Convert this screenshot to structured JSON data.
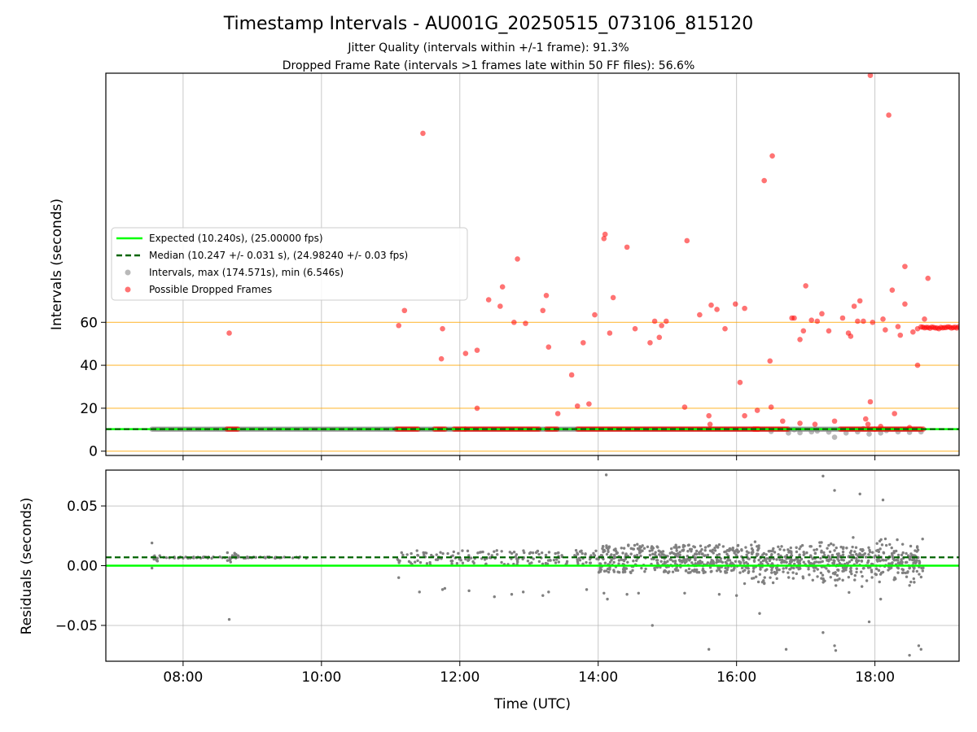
{
  "figure": {
    "title": "Timestamp Intervals - AU001G_20250515_073106_815120",
    "subtitle_1": "Jitter Quality (intervals within +/-1 frame): 91.3%",
    "subtitle_2": "Dropped Frame Rate (intervals >1 frames late within 50 FF files): 56.6%"
  },
  "colors": {
    "expected": "#00ff00",
    "median": "#006400",
    "intervals": "#808080",
    "dropped": "#ff0000",
    "hline": "#ffa500"
  },
  "chart_data": [
    {
      "type": "scatter",
      "panel": "top",
      "ylabel": "Intervals (seconds)",
      "xlabel": "",
      "xlim": [
        "06:53",
        "19:13"
      ],
      "ylim": [
        -2,
        176
      ],
      "yticks": [
        0,
        20,
        40,
        60
      ],
      "xticks": [
        "08:00",
        "10:00",
        "12:00",
        "14:00",
        "16:00",
        "18:00"
      ],
      "grid": true,
      "legend_position": "center-left",
      "reference_lines": {
        "expected": 10.24,
        "median": 10.247,
        "horizontal_levels": [
          0,
          20,
          40,
          60
        ]
      },
      "legend": [
        "Expected (10.240s), (25.00000 fps)",
        "Median (10.247 +/- 0.031 s), (24.98240 +/- 0.03 fps)",
        "Intervals, max (174.571s), min (6.546s)",
        "Possible Dropped Frames"
      ],
      "series": [
        {
          "name": "Intervals, max (174.571s), min (6.546s)",
          "bands": [
            [
              "07:33",
              "18:40",
              10.24
            ]
          ],
          "points": [
            [
              "16:45",
              8.5
            ],
            [
              "16:55",
              8.6
            ],
            [
              "17:05",
              9.0
            ],
            [
              "17:20",
              8.9
            ],
            [
              "17:25",
              6.5
            ],
            [
              "17:35",
              8.5
            ],
            [
              "17:45",
              9.0
            ],
            [
              "17:55",
              8.0
            ],
            [
              "18:05",
              8.5
            ],
            [
              "18:20",
              9.0
            ],
            [
              "18:30",
              8.8
            ],
            [
              "18:40",
              9.0
            ],
            [
              "16:30",
              9.2
            ],
            [
              "17:50",
              10.5
            ],
            [
              "16:50",
              10.0
            ],
            [
              "17:10",
              9.4
            ],
            [
              "18:10",
              9.6
            ]
          ]
        },
        {
          "name": "Possible Dropped Frames",
          "bands": [
            [
              "08:38",
              "08:48",
              10.3
            ],
            [
              "11:05",
              "11:25",
              10.3
            ],
            [
              "11:38",
              "11:48",
              10.3
            ],
            [
              "11:55",
              "12:05",
              10.3
            ],
            [
              "12:05",
              "13:10",
              10.3
            ],
            [
              "13:15",
              "13:25",
              10.3
            ],
            [
              "13:42",
              "16:20",
              10.3
            ],
            [
              "16:15",
              "16:45",
              10.3
            ],
            [
              "17:30",
              "18:00",
              10.3
            ],
            [
              "18:00",
              "18:42",
              10.3
            ],
            [
              "18:40",
              "19:13",
              57.5
            ]
          ],
          "points": [
            [
              "08:40",
              55
            ],
            [
              "11:07",
              58.5
            ],
            [
              "11:12",
              65.5
            ],
            [
              "11:28",
              148
            ],
            [
              "11:44",
              43
            ],
            [
              "11:45",
              57
            ],
            [
              "12:05",
              45.5
            ],
            [
              "12:15",
              47
            ],
            [
              "12:15",
              20
            ],
            [
              "12:25",
              70.5
            ],
            [
              "12:35",
              67.5
            ],
            [
              "12:37",
              76.5
            ],
            [
              "12:47",
              60
            ],
            [
              "12:50",
              89.5
            ],
            [
              "12:57",
              59.5
            ],
            [
              "13:12",
              65.5
            ],
            [
              "13:15",
              72.5
            ],
            [
              "13:17",
              48.5
            ],
            [
              "13:25",
              17.5
            ],
            [
              "13:37",
              35.5
            ],
            [
              "13:42",
              21
            ],
            [
              "13:47",
              50.5
            ],
            [
              "13:52",
              22
            ],
            [
              "13:57",
              63.5
            ],
            [
              "14:05",
              99
            ],
            [
              "14:06",
              101
            ],
            [
              "14:10",
              55
            ],
            [
              "14:13",
              71.5
            ],
            [
              "14:25",
              95
            ],
            [
              "14:32",
              57
            ],
            [
              "14:45",
              50.5
            ],
            [
              "14:49",
              60.5
            ],
            [
              "14:53",
              53
            ],
            [
              "14:55",
              58.5
            ],
            [
              "14:59",
              60.5
            ],
            [
              "15:15",
              20.5
            ],
            [
              "15:17",
              98
            ],
            [
              "15:28",
              63.5
            ],
            [
              "15:36",
              16.5
            ],
            [
              "15:37",
              12.5
            ],
            [
              "15:38",
              68
            ],
            [
              "15:43",
              66
            ],
            [
              "15:50",
              57
            ],
            [
              "15:59",
              68.5
            ],
            [
              "16:03",
              32
            ],
            [
              "16:07",
              66.5
            ],
            [
              "16:07",
              16.5
            ],
            [
              "16:18",
              19
            ],
            [
              "16:24",
              126
            ],
            [
              "16:29",
              42
            ],
            [
              "16:30",
              20.5
            ],
            [
              "16:31",
              137.5
            ],
            [
              "16:48",
              62
            ],
            [
              "16:50",
              62
            ],
            [
              "16:55",
              52
            ],
            [
              "16:58",
              56
            ],
            [
              "17:00",
              77
            ],
            [
              "17:05",
              61
            ],
            [
              "17:10",
              60.5
            ],
            [
              "17:14",
              64
            ],
            [
              "17:20",
              56
            ],
            [
              "17:32",
              62
            ],
            [
              "17:37",
              55
            ],
            [
              "17:39",
              53.5
            ],
            [
              "17:42",
              67.5
            ],
            [
              "17:45",
              60.5
            ],
            [
              "17:47",
              70
            ],
            [
              "17:50",
              60.5
            ],
            [
              "17:52",
              15
            ],
            [
              "17:54",
              12.5
            ],
            [
              "17:56",
              23
            ],
            [
              "17:56",
              175
            ],
            [
              "17:58",
              60
            ],
            [
              "18:07",
              61.5
            ],
            [
              "18:09",
              56.5
            ],
            [
              "18:12",
              156.5
            ],
            [
              "18:15",
              75
            ],
            [
              "18:17",
              17.5
            ],
            [
              "18:20",
              58
            ],
            [
              "18:22",
              54
            ],
            [
              "18:26",
              86
            ],
            [
              "18:26",
              68.5
            ],
            [
              "18:33",
              55.5
            ],
            [
              "18:37",
              40
            ],
            [
              "18:37",
              57
            ],
            [
              "18:43",
              61.5
            ],
            [
              "18:46",
              80.5
            ],
            [
              "16:40",
              14
            ],
            [
              "16:55",
              13
            ],
            [
              "17:08",
              12.5
            ],
            [
              "17:25",
              14
            ],
            [
              "18:05",
              11.5
            ],
            [
              "18:30",
              11
            ]
          ]
        }
      ]
    },
    {
      "type": "scatter",
      "panel": "bottom",
      "ylabel": "Residuals (seconds)",
      "xlabel": "Time (UTC)",
      "xlim": [
        "06:53",
        "19:13"
      ],
      "ylim": [
        -0.08,
        0.08
      ],
      "yticks": [
        "0.05",
        "0.00",
        "−0.05"
      ],
      "ytick_values": [
        0.05,
        0.0,
        -0.05
      ],
      "xticks": [
        "08:00",
        "10:00",
        "12:00",
        "14:00",
        "16:00",
        "18:00"
      ],
      "grid": true,
      "reference_lines": {
        "expected": 0.0,
        "median": 0.007
      },
      "series": [
        {
          "name": "",
          "regions": [
            [
              "07:33",
              "07:40",
              0.0068,
              0.004,
              8
            ],
            [
              "07:40",
              "09:50",
              0.0068,
              0.0006,
              70
            ],
            [
              "08:38",
              "08:48",
              0.007,
              0.004,
              14
            ],
            [
              "11:05",
              "14:00",
              0.0068,
              0.006,
              170
            ],
            [
              "14:00",
              "16:05",
              0.006,
              0.012,
              420
            ],
            [
              "16:05",
              "18:42",
              0.003,
              0.034,
              560
            ]
          ],
          "points": [
            [
              "07:33",
              0.019
            ],
            [
              "07:33",
              -0.002
            ],
            [
              "08:40",
              -0.045
            ],
            [
              "11:07",
              -0.01
            ],
            [
              "11:25",
              -0.022
            ],
            [
              "11:45",
              -0.02
            ],
            [
              "11:47",
              -0.019
            ],
            [
              "12:08",
              -0.021
            ],
            [
              "12:30",
              -0.026
            ],
            [
              "12:45",
              -0.024
            ],
            [
              "12:55",
              -0.022
            ],
            [
              "13:12",
              -0.025
            ],
            [
              "13:17",
              -0.022
            ],
            [
              "13:50",
              -0.02
            ],
            [
              "14:05",
              -0.023
            ],
            [
              "14:07",
              0.076
            ],
            [
              "14:08",
              -0.028
            ],
            [
              "14:25",
              -0.024
            ],
            [
              "14:35",
              -0.023
            ],
            [
              "14:47",
              -0.05
            ],
            [
              "15:15",
              -0.023
            ],
            [
              "15:36",
              -0.07
            ],
            [
              "15:45",
              -0.024
            ],
            [
              "16:00",
              -0.025
            ],
            [
              "16:20",
              -0.04
            ],
            [
              "16:43",
              -0.07
            ],
            [
              "17:15",
              -0.056
            ],
            [
              "17:25",
              -0.067
            ],
            [
              "17:26",
              -0.071
            ],
            [
              "17:55",
              -0.047
            ],
            [
              "18:05",
              -0.028
            ],
            [
              "18:30",
              -0.075
            ],
            [
              "18:38",
              -0.067
            ],
            [
              "18:40",
              -0.07
            ],
            [
              "17:15",
              0.075
            ],
            [
              "17:25",
              0.063
            ],
            [
              "17:47",
              0.06
            ],
            [
              "18:07",
              0.055
            ]
          ]
        }
      ]
    }
  ]
}
